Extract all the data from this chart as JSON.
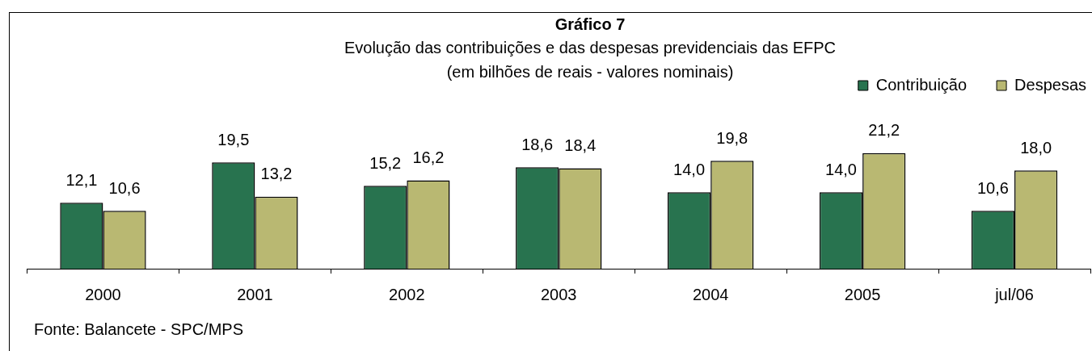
{
  "chart_data": {
    "type": "bar",
    "title": "Gráfico 7",
    "subtitle": "Evolução das contribuições e das despesas previdenciais das EFPC\n(em bilhões de reais - valores nominais)",
    "categories": [
      "2000",
      "2001",
      "2002",
      "2003",
      "2004",
      "2005",
      "jul/06"
    ],
    "series": [
      {
        "name": "Contribuição",
        "color": "#28734f",
        "values": [
          12.1,
          19.5,
          15.2,
          18.6,
          14.0,
          14.0,
          10.6
        ],
        "value_labels": [
          "12,1",
          "19,5",
          "15,2",
          "18,6",
          "14,0",
          "14,0",
          "10,6"
        ]
      },
      {
        "name": "Despesas",
        "color": "#b9b872",
        "values": [
          10.6,
          13.2,
          16.2,
          18.4,
          19.8,
          21.2,
          18.0
        ],
        "value_labels": [
          "10,6",
          "13,2",
          "16,2",
          "18,4",
          "19,8",
          "21,2",
          "18,0"
        ]
      }
    ],
    "legend": "top right",
    "tick_labels": "x",
    "annotations": [
      "Fonte: Balancete - SPC/MPS"
    ]
  }
}
